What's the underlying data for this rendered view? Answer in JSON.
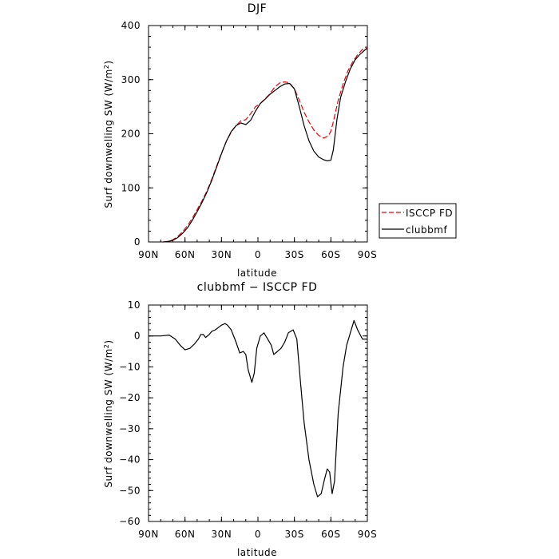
{
  "chart_data": [
    {
      "type": "line",
      "title": "DJF",
      "xlabel": "latitude",
      "ylabel": "Surf downwelling SW (W/m²)",
      "ylabel_parts": {
        "main": "Surf downwelling SW (W/m",
        "sup": "2",
        "end": ")"
      },
      "xlim": [
        -90,
        90
      ],
      "ylim": [
        0,
        400
      ],
      "xticks": [
        -90,
        -60,
        -30,
        0,
        30,
        60,
        90
      ],
      "xtick_labels": [
        "90N",
        "60N",
        "30N",
        "0",
        "30S",
        "60S",
        "90S"
      ],
      "yticks": [
        0,
        100,
        200,
        300,
        400
      ],
      "ytick_labels": [
        "0",
        "100",
        "200",
        "300",
        "400"
      ],
      "grid": false,
      "legend_position": "right, outside plot",
      "series": [
        {
          "name": "ISCCP FD",
          "color": "#e8000b",
          "dash": "dashed",
          "x": [
            -78,
            -74,
            -70,
            -66,
            -62,
            -58,
            -54,
            -50,
            -46,
            -42,
            -38,
            -34,
            -30,
            -26,
            -22,
            -18,
            -14,
            -10,
            -6,
            -2,
            2,
            6,
            10,
            14,
            18,
            22,
            26,
            30,
            34,
            38,
            42,
            46,
            50,
            54,
            58,
            60,
            62,
            66,
            70,
            74,
            78,
            82,
            86,
            90
          ],
          "y": [
            0,
            1,
            4,
            10,
            19,
            30,
            44,
            60,
            76,
            94,
            116,
            140,
            164,
            186,
            203,
            215,
            224,
            226,
            237,
            250,
            256,
            265,
            274,
            287,
            294,
            296,
            294,
            283,
            262,
            240,
            222,
            207,
            197,
            192,
            196,
            205,
            222,
            262,
            292,
            316,
            333,
            346,
            356,
            358
          ]
        },
        {
          "name": "clubbmf",
          "color": "#000000",
          "dash": "solid",
          "x": [
            -78,
            -74,
            -70,
            -66,
            -62,
            -58,
            -54,
            -50,
            -46,
            -42,
            -38,
            -34,
            -30,
            -26,
            -22,
            -18,
            -14,
            -10,
            -6,
            -2,
            2,
            6,
            10,
            14,
            18,
            22,
            26,
            30,
            34,
            38,
            42,
            46,
            50,
            54,
            57,
            60,
            62,
            65,
            68,
            72,
            76,
            80,
            84,
            88,
            90
          ],
          "y": [
            0,
            1,
            3,
            8,
            16,
            26,
            40,
            56,
            73,
            92,
            114,
            138,
            163,
            186,
            204,
            215,
            220,
            217,
            225,
            242,
            256,
            264,
            273,
            280,
            287,
            292,
            293,
            283,
            250,
            215,
            187,
            168,
            157,
            152,
            150,
            151,
            170,
            226,
            267,
            296,
            320,
            337,
            347,
            355,
            358
          ]
        }
      ]
    },
    {
      "type": "line",
      "title": "clubbmf − ISCCP FD",
      "xlabel": "latitude",
      "ylabel": "Surf downwelling SW (W/m²)",
      "ylabel_parts": {
        "main": "Surf downwelling SW (W/m",
        "sup": "2",
        "end": ")"
      },
      "xlim": [
        -90,
        90
      ],
      "ylim": [
        -60,
        10
      ],
      "xticks": [
        -90,
        -60,
        -30,
        0,
        30,
        60,
        90
      ],
      "xtick_labels": [
        "90N",
        "60N",
        "30N",
        "0",
        "30S",
        "60S",
        "90S"
      ],
      "yticks": [
        -60,
        -50,
        -40,
        -30,
        -20,
        -10,
        0,
        10
      ],
      "ytick_labels": [
        "−60",
        "−50",
        "−40",
        "−30",
        "−20",
        "−10",
        "0",
        "10"
      ],
      "grid": false,
      "series": [
        {
          "color": "#000000",
          "dash": "solid",
          "x": [
            -90,
            -80,
            -73,
            -68,
            -64,
            -60,
            -56,
            -52,
            -49,
            -47,
            -45,
            -43,
            -40,
            -38,
            -35,
            -30,
            -27,
            -25,
            -22,
            -18,
            -15,
            -12,
            -10,
            -8,
            -5,
            -3,
            -1,
            2,
            5,
            8,
            11,
            13,
            16,
            19,
            22,
            25,
            29,
            32,
            35,
            38,
            42,
            46,
            49,
            52,
            55,
            57,
            59,
            61,
            63,
            66,
            70,
            73,
            76,
            79,
            82,
            86,
            90
          ],
          "y": [
            0,
            0,
            0.3,
            -1,
            -3,
            -4.5,
            -4,
            -2.5,
            -1,
            0.5,
            0.5,
            -0.5,
            0.5,
            1.5,
            2,
            3.5,
            4,
            3.5,
            2,
            -2,
            -5.5,
            -5,
            -6,
            -11,
            -15,
            -12,
            -4,
            0,
            1,
            -1,
            -3,
            -6,
            -5,
            -4,
            -2,
            1,
            2,
            -1,
            -15,
            -28,
            -40,
            -48,
            -52,
            -51,
            -46,
            -43,
            -44,
            -51,
            -47,
            -25,
            -10,
            -3,
            1,
            5,
            2,
            -1,
            -1
          ]
        }
      ]
    }
  ],
  "legend": {
    "items": [
      {
        "label": "ISCCP FD",
        "color": "#e8000b",
        "dash": "dashed"
      },
      {
        "label": "clubbmf",
        "color": "#000000",
        "dash": "solid"
      }
    ]
  }
}
